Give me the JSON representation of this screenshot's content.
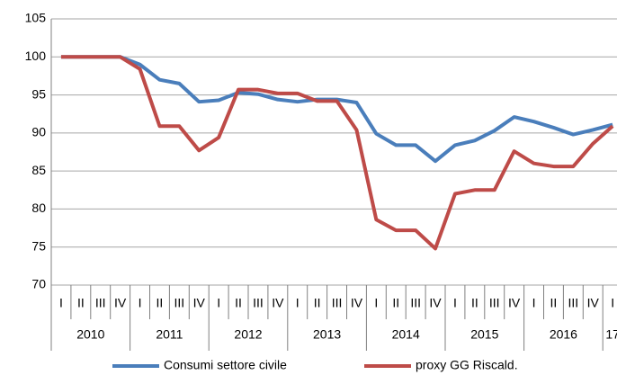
{
  "chart_data": {
    "type": "line",
    "groups": [
      {
        "label": "2010",
        "categories": [
          "I",
          "II",
          "III",
          "IV"
        ]
      },
      {
        "label": "2011",
        "categories": [
          "I",
          "II",
          "III",
          "IV"
        ]
      },
      {
        "label": "2012",
        "categories": [
          "I",
          "II",
          "III",
          "IV"
        ]
      },
      {
        "label": "2013",
        "categories": [
          "I",
          "II",
          "III",
          "IV"
        ]
      },
      {
        "label": "2014",
        "categories": [
          "I",
          "II",
          "III",
          "IV"
        ]
      },
      {
        "label": "2015",
        "categories": [
          "I",
          "II",
          "III",
          "IV"
        ]
      },
      {
        "label": "2016",
        "categories": [
          "I",
          "II",
          "III",
          "IV"
        ]
      },
      {
        "label": "17",
        "categories": [
          "I"
        ]
      }
    ],
    "series": [
      {
        "name": "Consumi settore civile",
        "color": "#4a7ebb",
        "values": [
          100,
          100,
          100,
          100,
          99,
          97,
          96.5,
          94.1,
          94.3,
          95.3,
          95.1,
          94.4,
          94.1,
          94.4,
          94.4,
          94.0,
          89.9,
          88.4,
          88.4,
          86.3,
          88.4,
          89.0,
          90.3,
          92.1,
          91.5,
          90.7,
          89.8,
          90.4,
          91.1
        ]
      },
      {
        "name": "proxy GG Riscald.",
        "color": "#be4b48",
        "values": [
          100,
          100,
          100,
          100,
          98.4,
          90.9,
          90.9,
          87.7,
          89.4,
          95.7,
          95.7,
          95.2,
          95.2,
          94.2,
          94.2,
          90.4,
          78.6,
          77.2,
          77.2,
          74.8,
          82.0,
          82.5,
          82.5,
          87.6,
          86.0,
          85.6,
          85.6,
          88.6,
          90.9
        ]
      }
    ],
    "ylim": [
      70,
      105
    ],
    "yticks": [
      70,
      75,
      80,
      85,
      90,
      95,
      100,
      105
    ],
    "grid": true,
    "legend": "bottom"
  }
}
